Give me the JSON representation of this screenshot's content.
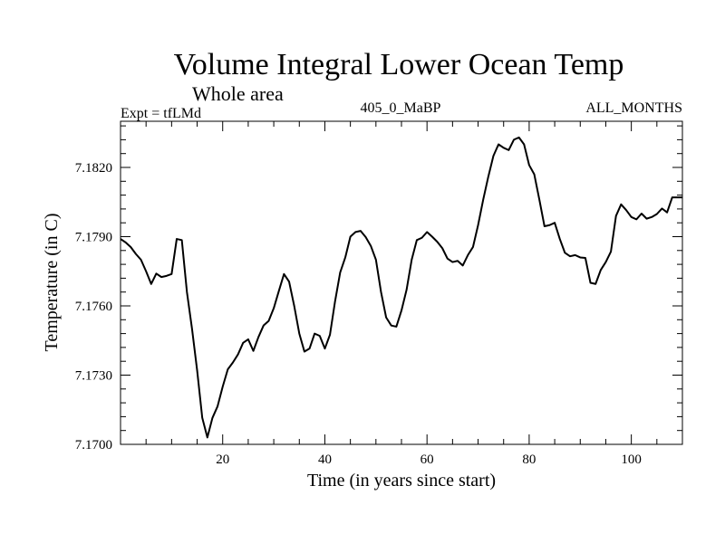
{
  "chart_data": {
    "type": "line",
    "title": "Volume Integral Lower Ocean Temp",
    "subtitle": "Whole area",
    "left_label": "Expt = tfLMd",
    "center_label": "405_0_MaBP",
    "right_label": "ALL_MONTHS",
    "xlabel": "Time (in years since start)",
    "ylabel": "Temperature (in C)",
    "xlim": [
      0,
      110
    ],
    "ylim": [
      7.17,
      7.184
    ],
    "x_major_ticks": [
      20,
      40,
      60,
      80,
      100
    ],
    "x_tick_labels": [
      "20",
      "40",
      "60",
      "80",
      "100"
    ],
    "y_major_ticks": [
      7.17,
      7.173,
      7.176,
      7.179,
      7.182
    ],
    "y_tick_labels": [
      "7.1700",
      "7.1730",
      "7.1760",
      "7.1790",
      "7.1820"
    ],
    "grid": false,
    "series": [
      {
        "name": "Volume Integral Lower Ocean Temp",
        "x": [
          0,
          1,
          2,
          3,
          4,
          5,
          6,
          7,
          8,
          9,
          10,
          11,
          12,
          13,
          14,
          15,
          16,
          17,
          18,
          19,
          20,
          21,
          22,
          23,
          24,
          25,
          26,
          27,
          28,
          29,
          30,
          31,
          32,
          33,
          34,
          35,
          36,
          37,
          38,
          39,
          40,
          41,
          42,
          43,
          44,
          45,
          46,
          47,
          48,
          49,
          50,
          51,
          52,
          53,
          54,
          55,
          56,
          57,
          58,
          59,
          60,
          61,
          62,
          63,
          64,
          65,
          66,
          67,
          68,
          69,
          70,
          71,
          72,
          73,
          74,
          75,
          76,
          77,
          78,
          79,
          80,
          81,
          82,
          83,
          84,
          85,
          86,
          87,
          88,
          89,
          90,
          91,
          92,
          93,
          94,
          95,
          96,
          97,
          98,
          99,
          100,
          101,
          102,
          103,
          104,
          105,
          106,
          107,
          108,
          109,
          110
        ],
        "y": [
          7.1789,
          7.17875,
          7.17855,
          7.17825,
          7.178,
          7.1775,
          7.17695,
          7.1774,
          7.17725,
          7.1773,
          7.17738,
          7.1789,
          7.17885,
          7.1766,
          7.175,
          7.1732,
          7.17115,
          7.1703,
          7.17115,
          7.17165,
          7.1725,
          7.17325,
          7.17355,
          7.1739,
          7.1744,
          7.17455,
          7.17405,
          7.17465,
          7.17515,
          7.17535,
          7.1759,
          7.17665,
          7.17738,
          7.17705,
          7.176,
          7.1748,
          7.17402,
          7.17415,
          7.1748,
          7.1747,
          7.17415,
          7.17475,
          7.1762,
          7.17745,
          7.1781,
          7.179,
          7.1792,
          7.17925,
          7.17898,
          7.1786,
          7.178,
          7.1766,
          7.1755,
          7.17515,
          7.1751,
          7.1758,
          7.1767,
          7.178,
          7.17885,
          7.17895,
          7.1792,
          7.179,
          7.17878,
          7.1785,
          7.17805,
          7.1779,
          7.17795,
          7.17775,
          7.1782,
          7.17855,
          7.1795,
          7.1806,
          7.1816,
          7.1825,
          7.183,
          7.18285,
          7.18275,
          7.1832,
          7.1833,
          7.183,
          7.1821,
          7.1817,
          7.1806,
          7.17945,
          7.1795,
          7.1796,
          7.1789,
          7.1783,
          7.17815,
          7.1782,
          7.1781,
          7.17808,
          7.177,
          7.17695,
          7.17755,
          7.1779,
          7.17835,
          7.1799,
          7.1804,
          7.18015,
          7.17985,
          7.17975,
          7.18,
          7.17978,
          7.17985,
          7.17998,
          7.18022,
          7.18005,
          7.1807,
          7.1807,
          7.1807
        ]
      }
    ]
  }
}
